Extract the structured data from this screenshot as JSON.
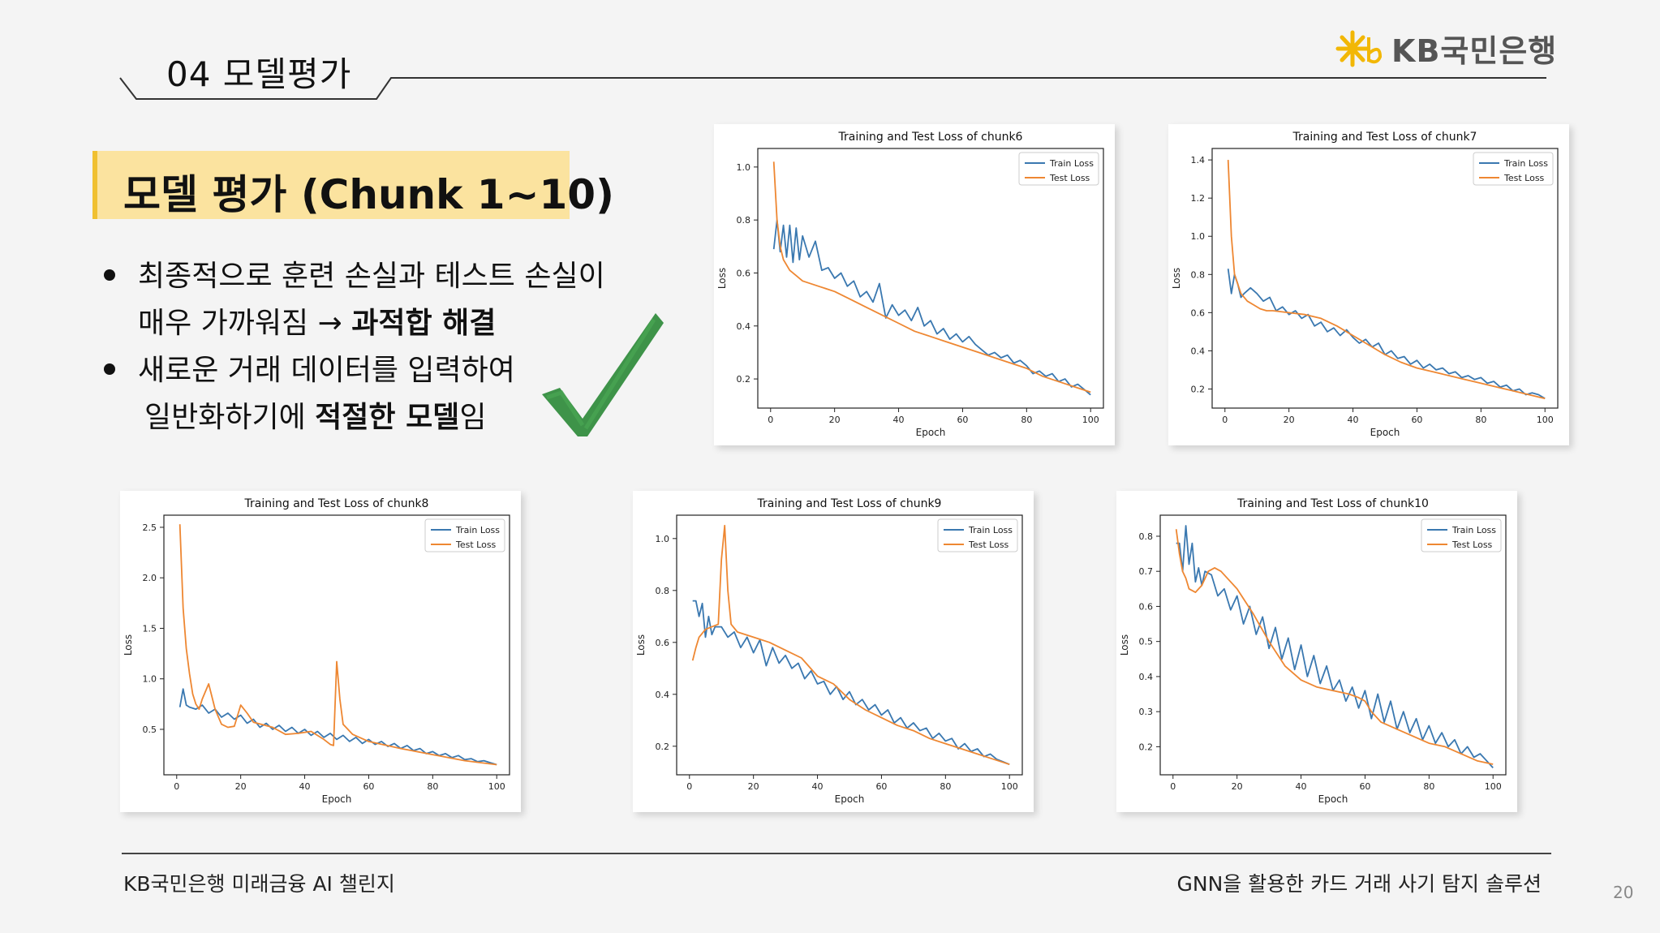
{
  "header": {
    "title": "04  모델평가",
    "logo_text": "KB국민은행"
  },
  "badge": {
    "text": "모델 평가 (Chunk 1~10)"
  },
  "bullets": {
    "b1_line1": "최종적으로 훈련 손실과 테스트 손실이",
    "b1_line2_plain": "매우 가까워짐 → ",
    "b1_line2_bold": "과적합 해결",
    "b2_line1": "새로운 거래 데이터를 입력하여",
    "b2_line2_plain": "일반화하기에 ",
    "b2_line2_bold": "적절한 모델",
    "b2_line2_tail": "임"
  },
  "footer": {
    "left": "KB국민은행 미래금융 AI 챌린지",
    "right": "GNN을 활용한 카드 거래 사기 탐지 솔루션",
    "page": "20"
  },
  "colors": {
    "train": "#3a78b0",
    "test": "#ee8732",
    "badge": "#fbe39f",
    "check": "#2e8a3a"
  },
  "chart_data": [
    {
      "type": "line",
      "title": "Training and Test Loss of chunk6",
      "xlabel": "Epoch",
      "ylabel": "Loss",
      "xlim": [
        -4,
        104
      ],
      "ylim": [
        0.09,
        1.07
      ],
      "xticks": [
        0,
        20,
        40,
        60,
        80,
        100
      ],
      "yticks": [
        0.2,
        0.4,
        0.6,
        0.8,
        1.0
      ],
      "legend": "top-right",
      "series": [
        {
          "name": "Train Loss",
          "x": [
            1,
            2,
            3,
            4,
            5,
            6,
            7,
            8,
            9,
            10,
            12,
            14,
            16,
            18,
            20,
            22,
            24,
            26,
            28,
            30,
            32,
            34,
            36,
            38,
            40,
            42,
            44,
            46,
            48,
            50,
            52,
            54,
            56,
            58,
            60,
            62,
            64,
            66,
            68,
            70,
            72,
            74,
            76,
            78,
            80,
            82,
            84,
            86,
            88,
            90,
            92,
            94,
            96,
            98,
            100
          ],
          "y": [
            0.69,
            0.8,
            0.68,
            0.78,
            0.66,
            0.78,
            0.64,
            0.77,
            0.65,
            0.74,
            0.66,
            0.72,
            0.61,
            0.62,
            0.58,
            0.6,
            0.55,
            0.57,
            0.51,
            0.53,
            0.49,
            0.56,
            0.43,
            0.48,
            0.44,
            0.46,
            0.42,
            0.47,
            0.4,
            0.42,
            0.37,
            0.39,
            0.35,
            0.37,
            0.34,
            0.36,
            0.33,
            0.31,
            0.29,
            0.3,
            0.28,
            0.29,
            0.26,
            0.27,
            0.25,
            0.22,
            0.23,
            0.21,
            0.22,
            0.19,
            0.2,
            0.17,
            0.18,
            0.16,
            0.14
          ]
        },
        {
          "name": "Test Loss",
          "x": [
            1,
            2,
            3,
            4,
            6,
            8,
            10,
            15,
            20,
            25,
            30,
            35,
            40,
            45,
            50,
            55,
            60,
            65,
            70,
            75,
            80,
            85,
            90,
            95,
            100
          ],
          "y": [
            1.02,
            0.8,
            0.7,
            0.65,
            0.61,
            0.59,
            0.57,
            0.55,
            0.53,
            0.5,
            0.47,
            0.44,
            0.41,
            0.38,
            0.36,
            0.34,
            0.32,
            0.3,
            0.28,
            0.26,
            0.24,
            0.21,
            0.19,
            0.17,
            0.15
          ]
        }
      ]
    },
    {
      "type": "line",
      "title": "Training and Test Loss of chunk7",
      "xlabel": "Epoch",
      "ylabel": "Loss",
      "xlim": [
        -4,
        104
      ],
      "ylim": [
        0.1,
        1.46
      ],
      "xticks": [
        0,
        20,
        40,
        60,
        80,
        100
      ],
      "yticks": [
        0.2,
        0.4,
        0.6,
        0.8,
        1.0,
        1.2,
        1.4
      ],
      "legend": "top-right",
      "series": [
        {
          "name": "Train Loss",
          "x": [
            1,
            2,
            3,
            4,
            5,
            6,
            8,
            10,
            12,
            14,
            16,
            18,
            20,
            22,
            24,
            26,
            28,
            30,
            32,
            34,
            36,
            38,
            40,
            42,
            44,
            46,
            48,
            50,
            52,
            54,
            56,
            58,
            60,
            62,
            64,
            66,
            68,
            70,
            72,
            74,
            76,
            78,
            80,
            82,
            84,
            86,
            88,
            90,
            92,
            94,
            96,
            98,
            100
          ],
          "y": [
            0.83,
            0.7,
            0.8,
            0.75,
            0.68,
            0.7,
            0.73,
            0.7,
            0.66,
            0.68,
            0.61,
            0.63,
            0.59,
            0.61,
            0.57,
            0.59,
            0.53,
            0.55,
            0.5,
            0.52,
            0.48,
            0.51,
            0.47,
            0.44,
            0.46,
            0.42,
            0.44,
            0.38,
            0.4,
            0.36,
            0.37,
            0.33,
            0.35,
            0.31,
            0.33,
            0.3,
            0.31,
            0.28,
            0.29,
            0.26,
            0.27,
            0.25,
            0.26,
            0.23,
            0.24,
            0.21,
            0.22,
            0.19,
            0.2,
            0.17,
            0.18,
            0.17,
            0.15
          ]
        },
        {
          "name": "Test Loss",
          "x": [
            1,
            2,
            3,
            5,
            7,
            9,
            11,
            13,
            15,
            20,
            25,
            30,
            35,
            40,
            45,
            50,
            55,
            60,
            65,
            70,
            75,
            80,
            85,
            90,
            95,
            100
          ],
          "y": [
            1.4,
            1.0,
            0.8,
            0.7,
            0.66,
            0.64,
            0.62,
            0.61,
            0.61,
            0.6,
            0.59,
            0.57,
            0.53,
            0.48,
            0.43,
            0.38,
            0.34,
            0.31,
            0.29,
            0.27,
            0.25,
            0.23,
            0.21,
            0.19,
            0.17,
            0.15
          ]
        }
      ]
    },
    {
      "type": "line",
      "title": "Training and Test Loss of chunk8",
      "xlabel": "Epoch",
      "ylabel": "Loss",
      "xlim": [
        -4,
        104
      ],
      "ylim": [
        0.05,
        2.62
      ],
      "xticks": [
        0,
        20,
        40,
        60,
        80,
        100
      ],
      "yticks": [
        0.5,
        1.0,
        1.5,
        2.0,
        2.5
      ],
      "legend": "top-right",
      "series": [
        {
          "name": "Train Loss",
          "x": [
            1,
            2,
            3,
            4,
            6,
            8,
            10,
            12,
            14,
            16,
            18,
            20,
            22,
            24,
            26,
            28,
            30,
            32,
            34,
            36,
            38,
            40,
            42,
            44,
            46,
            48,
            50,
            52,
            54,
            56,
            58,
            60,
            62,
            64,
            66,
            68,
            70,
            72,
            74,
            76,
            78,
            80,
            82,
            84,
            86,
            88,
            90,
            92,
            94,
            96,
            98,
            100
          ],
          "y": [
            0.72,
            0.9,
            0.74,
            0.72,
            0.7,
            0.74,
            0.66,
            0.7,
            0.62,
            0.66,
            0.6,
            0.64,
            0.56,
            0.6,
            0.52,
            0.56,
            0.5,
            0.54,
            0.48,
            0.52,
            0.46,
            0.5,
            0.44,
            0.48,
            0.42,
            0.46,
            0.4,
            0.44,
            0.38,
            0.42,
            0.36,
            0.4,
            0.35,
            0.38,
            0.33,
            0.36,
            0.31,
            0.34,
            0.29,
            0.31,
            0.26,
            0.28,
            0.24,
            0.26,
            0.22,
            0.24,
            0.2,
            0.21,
            0.18,
            0.19,
            0.17,
            0.15
          ]
        },
        {
          "name": "Test Loss",
          "x": [
            1,
            2,
            3,
            4,
            5,
            6,
            7,
            8,
            10,
            12,
            14,
            16,
            18,
            20,
            22,
            24,
            30,
            34,
            38,
            42,
            46,
            48,
            49,
            50,
            51,
            52,
            55,
            60,
            70,
            80,
            90,
            100
          ],
          "y": [
            2.53,
            1.7,
            1.3,
            1.05,
            0.85,
            0.75,
            0.7,
            0.8,
            0.95,
            0.7,
            0.55,
            0.52,
            0.53,
            0.74,
            0.66,
            0.57,
            0.52,
            0.45,
            0.46,
            0.48,
            0.4,
            0.35,
            0.34,
            1.17,
            0.8,
            0.55,
            0.45,
            0.38,
            0.31,
            0.25,
            0.19,
            0.15
          ]
        }
      ]
    },
    {
      "type": "line",
      "title": "Training and Test Loss of chunk9",
      "xlabel": "Epoch",
      "ylabel": "Loss",
      "xlim": [
        -4,
        104
      ],
      "ylim": [
        0.09,
        1.09
      ],
      "xticks": [
        0,
        20,
        40,
        60,
        80,
        100
      ],
      "yticks": [
        0.2,
        0.4,
        0.6,
        0.8,
        1.0
      ],
      "legend": "top-right",
      "series": [
        {
          "name": "Train Loss",
          "x": [
            1,
            2,
            3,
            4,
            5,
            6,
            7,
            8,
            10,
            12,
            14,
            16,
            18,
            20,
            22,
            24,
            26,
            28,
            30,
            32,
            34,
            36,
            38,
            40,
            42,
            44,
            46,
            48,
            50,
            52,
            54,
            56,
            58,
            60,
            62,
            64,
            66,
            68,
            70,
            72,
            74,
            76,
            78,
            80,
            82,
            84,
            86,
            88,
            90,
            92,
            94,
            96,
            98,
            100
          ],
          "y": [
            0.76,
            0.76,
            0.7,
            0.75,
            0.62,
            0.7,
            0.63,
            0.66,
            0.66,
            0.62,
            0.64,
            0.58,
            0.62,
            0.56,
            0.61,
            0.51,
            0.58,
            0.52,
            0.55,
            0.5,
            0.52,
            0.46,
            0.49,
            0.44,
            0.45,
            0.4,
            0.43,
            0.38,
            0.41,
            0.36,
            0.38,
            0.34,
            0.36,
            0.32,
            0.34,
            0.29,
            0.31,
            0.27,
            0.29,
            0.26,
            0.27,
            0.23,
            0.25,
            0.22,
            0.23,
            0.19,
            0.21,
            0.18,
            0.19,
            0.16,
            0.17,
            0.15,
            0.14,
            0.13
          ]
        },
        {
          "name": "Test Loss",
          "x": [
            1,
            2,
            3,
            5,
            7,
            9,
            10,
            11,
            12,
            13,
            15,
            20,
            25,
            30,
            35,
            40,
            45,
            50,
            55,
            60,
            65,
            70,
            75,
            80,
            85,
            90,
            95,
            100
          ],
          "y": [
            0.53,
            0.58,
            0.62,
            0.65,
            0.66,
            0.67,
            0.92,
            1.05,
            0.8,
            0.67,
            0.64,
            0.62,
            0.6,
            0.57,
            0.54,
            0.47,
            0.44,
            0.38,
            0.34,
            0.31,
            0.28,
            0.26,
            0.23,
            0.21,
            0.19,
            0.17,
            0.15,
            0.13
          ]
        }
      ]
    },
    {
      "type": "line",
      "title": "Training and Test Loss of chunk10",
      "xlabel": "Epoch",
      "ylabel": "Loss",
      "xlim": [
        -4,
        104
      ],
      "ylim": [
        0.12,
        0.86
      ],
      "xticks": [
        0,
        20,
        40,
        60,
        80,
        100
      ],
      "yticks": [
        0.2,
        0.3,
        0.4,
        0.5,
        0.6,
        0.7,
        0.8
      ],
      "legend": "top-right",
      "series": [
        {
          "name": "Train Loss",
          "x": [
            1,
            2,
            3,
            4,
            5,
            6,
            7,
            8,
            9,
            10,
            12,
            14,
            16,
            18,
            20,
            22,
            24,
            26,
            28,
            30,
            32,
            34,
            36,
            38,
            40,
            42,
            44,
            46,
            48,
            50,
            52,
            54,
            56,
            58,
            60,
            62,
            64,
            66,
            68,
            70,
            72,
            74,
            76,
            78,
            80,
            82,
            84,
            86,
            88,
            90,
            92,
            94,
            96,
            98,
            100
          ],
          "y": [
            0.78,
            0.78,
            0.7,
            0.83,
            0.72,
            0.78,
            0.67,
            0.71,
            0.66,
            0.7,
            0.69,
            0.63,
            0.65,
            0.59,
            0.63,
            0.55,
            0.6,
            0.52,
            0.57,
            0.48,
            0.54,
            0.45,
            0.51,
            0.42,
            0.49,
            0.4,
            0.46,
            0.38,
            0.43,
            0.36,
            0.39,
            0.33,
            0.37,
            0.31,
            0.36,
            0.28,
            0.35,
            0.27,
            0.33,
            0.25,
            0.3,
            0.24,
            0.28,
            0.22,
            0.26,
            0.21,
            0.24,
            0.2,
            0.22,
            0.18,
            0.2,
            0.17,
            0.18,
            0.16,
            0.14
          ]
        },
        {
          "name": "Test Loss",
          "x": [
            1,
            2,
            3,
            4,
            5,
            7,
            9,
            11,
            13,
            15,
            17,
            20,
            25,
            30,
            35,
            40,
            45,
            50,
            55,
            58,
            60,
            62,
            65,
            70,
            75,
            80,
            85,
            90,
            95,
            100
          ],
          "y": [
            0.82,
            0.75,
            0.7,
            0.68,
            0.65,
            0.64,
            0.66,
            0.7,
            0.71,
            0.7,
            0.68,
            0.65,
            0.58,
            0.5,
            0.43,
            0.39,
            0.37,
            0.36,
            0.35,
            0.34,
            0.33,
            0.3,
            0.27,
            0.25,
            0.23,
            0.21,
            0.2,
            0.18,
            0.16,
            0.15
          ]
        }
      ]
    }
  ]
}
